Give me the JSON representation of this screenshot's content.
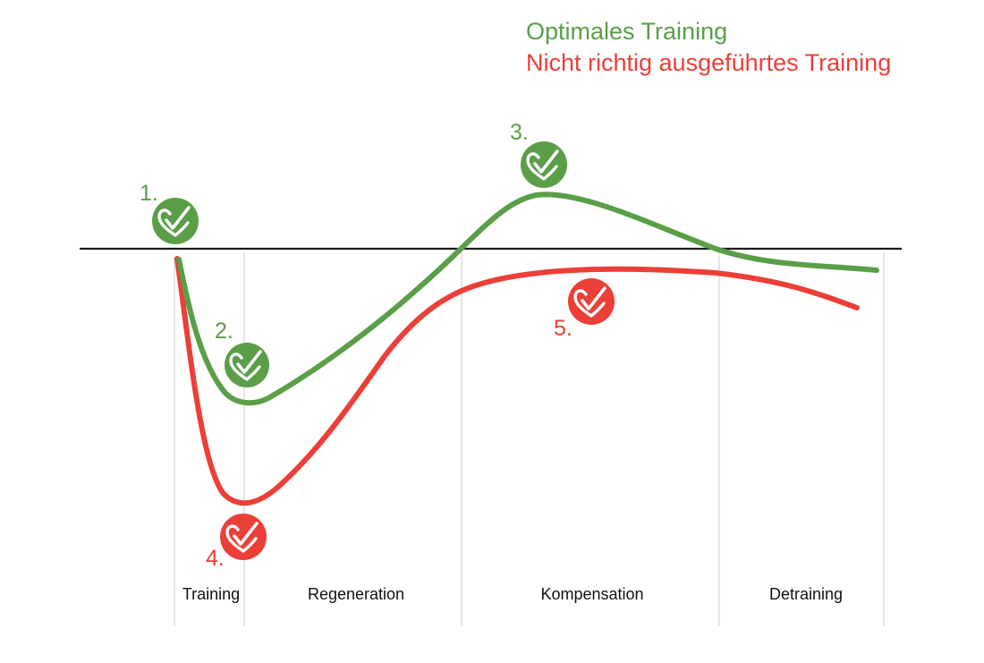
{
  "colors": {
    "optimal": "#5a9e47",
    "incorrect": "#eb3f38",
    "baseline": "#1a1a1a",
    "gridline": "#d9d9d9",
    "check": "#ffffff"
  },
  "legend": {
    "optimal_label": "Optimales Training",
    "incorrect_label": "Nicht richtig ausgeführtes Training"
  },
  "phases": {
    "training": "Training",
    "regeneration": "Regeneration",
    "kompensation": "Kompensation",
    "detraining": "Detraining"
  },
  "markers": {
    "m1": {
      "number": "1.",
      "icon": "heart-check-icon",
      "series": "optimal"
    },
    "m2": {
      "number": "2.",
      "icon": "heart-check-icon",
      "series": "optimal"
    },
    "m3": {
      "number": "3.",
      "icon": "heart-check-icon",
      "series": "optimal"
    },
    "m4": {
      "number": "4.",
      "icon": "heart-check-icon",
      "series": "incorrect"
    },
    "m5": {
      "number": "5.",
      "icon": "heart-check-icon",
      "series": "incorrect"
    }
  }
}
